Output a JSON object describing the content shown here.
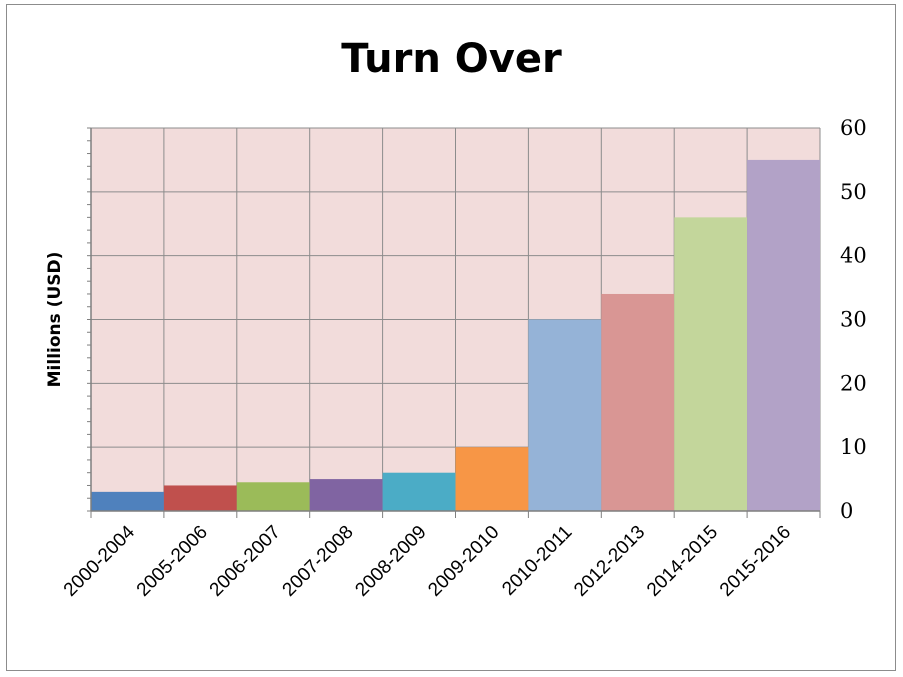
{
  "chart_data": {
    "type": "bar",
    "title": "Turn Over",
    "xlabel": "",
    "ylabel": "Millions (USD)",
    "ylim": [
      0,
      60
    ],
    "yticks": [
      0,
      10,
      20,
      30,
      40,
      50,
      60
    ],
    "yaxis_side": "right",
    "grid": true,
    "legend": "none",
    "plot_background": "#f2dcdb",
    "categories": [
      "2000-2004",
      "2005-2006",
      "2006-2007",
      "2007-2008",
      "2008-2009",
      "2009-2010",
      "2010-2011",
      "2012-2013",
      "2014-2015",
      "2015-2016"
    ],
    "values": [
      3,
      4,
      4.5,
      5,
      6,
      10,
      30,
      34,
      46,
      55
    ],
    "colors": [
      "#4f81bd",
      "#c0504d",
      "#9bbb59",
      "#8064a2",
      "#4bacc6",
      "#f79646",
      "#95b3d7",
      "#d99694",
      "#c3d69b",
      "#b2a2c7"
    ]
  }
}
